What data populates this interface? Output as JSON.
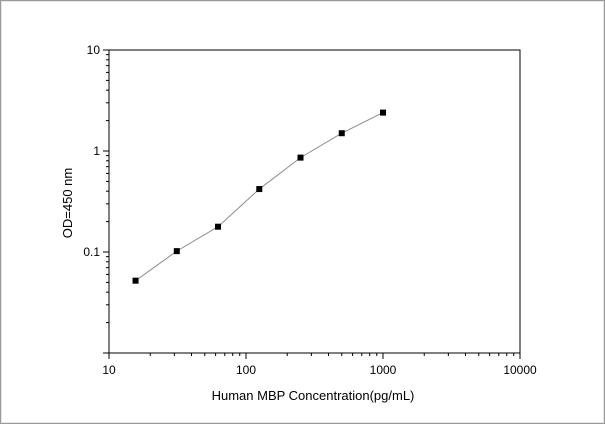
{
  "chart_data": {
    "type": "line",
    "title": "",
    "xlabel": "Human MBP Concentration(pg/mL)",
    "ylabel": "OD=450 nm",
    "xscale": "log",
    "yscale": "log",
    "xlim": [
      10,
      10000
    ],
    "ylim": [
      0.01,
      10
    ],
    "x_ticks": [
      "10",
      "100",
      "1000",
      "10000"
    ],
    "y_ticks": [
      "0.1",
      "1",
      "10"
    ],
    "grid": false,
    "legend": "none",
    "colors": {
      "line": "#8c8c8c",
      "marker": "#000000",
      "axis": "#000000"
    },
    "series": [
      {
        "x": [
          15.625,
          31.25,
          62.5,
          125,
          250,
          500,
          1000
        ],
        "y": [
          0.052,
          0.102,
          0.178,
          0.42,
          0.86,
          1.5,
          2.4
        ]
      }
    ]
  }
}
